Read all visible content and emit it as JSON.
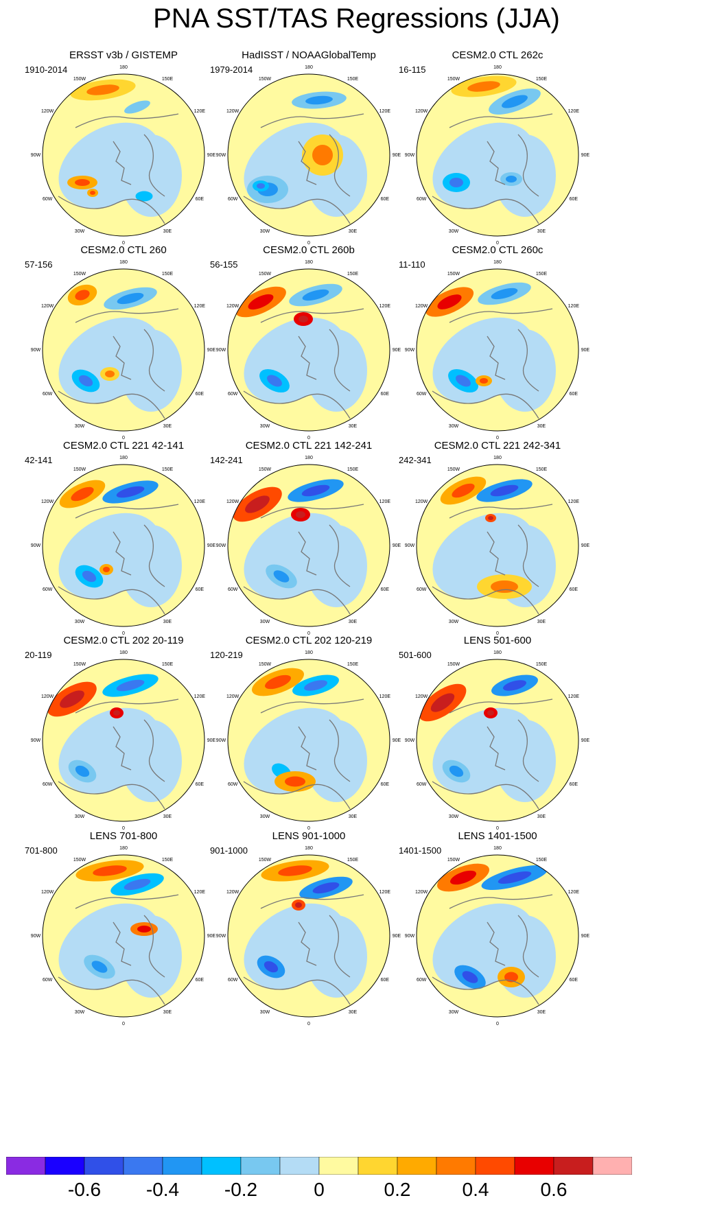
{
  "title": "PNA SST/TAS Regressions (JJA)",
  "panels": [
    {
      "title": "ERSST v3b / GISTEMP",
      "period": "1910-2014"
    },
    {
      "title": "HadISST / NOAAGlobalTemp",
      "period": "1979-2014"
    },
    {
      "title": "CESM2.0 CTL 262c",
      "period": "16-115"
    },
    {
      "title": "CESM2.0 CTL 260",
      "period": "57-156"
    },
    {
      "title": "CESM2.0 CTL 260b",
      "period": "56-155"
    },
    {
      "title": "CESM2.0 CTL 260c",
      "period": "11-110"
    },
    {
      "title": "CESM2.0 CTL 221 42-141",
      "period": "42-141"
    },
    {
      "title": "CESM2.0 CTL 221 142-241",
      "period": "142-241"
    },
    {
      "title": "CESM2.0 CTL 221 242-341",
      "period": "242-341"
    },
    {
      "title": "CESM2.0 CTL 202 20-119",
      "period": "20-119"
    },
    {
      "title": "CESM2.0 CTL 202 120-219",
      "period": "120-219"
    },
    {
      "title": "LENS 501-600",
      "period": "501-600"
    },
    {
      "title": "LENS 701-800",
      "period": "701-800"
    },
    {
      "title": "LENS 901-1000",
      "period": "901-1000"
    },
    {
      "title": "LENS 1401-1500",
      "period": "1401-1500"
    }
  ],
  "longitude_labels": [
    "180",
    "150E",
    "120E",
    "90E",
    "60E",
    "30E",
    "0",
    "30W",
    "60W",
    "90W",
    "120W",
    "150W"
  ],
  "colorbar": {
    "colors": [
      "#8a2be2",
      "#1a00ff",
      "#3050e8",
      "#3a78f0",
      "#2196f3",
      "#00c0ff",
      "#78c8f0",
      "#b4dcf5",
      "#fffaa0",
      "#ffd630",
      "#ffaa00",
      "#ff7a00",
      "#ff4a00",
      "#e80000",
      "#c81e1e",
      "#ffb0b0"
    ],
    "labels": [
      "-0.6",
      "-0.4",
      "-0.2",
      "0",
      "0.2",
      "0.4",
      "0.6"
    ]
  }
}
